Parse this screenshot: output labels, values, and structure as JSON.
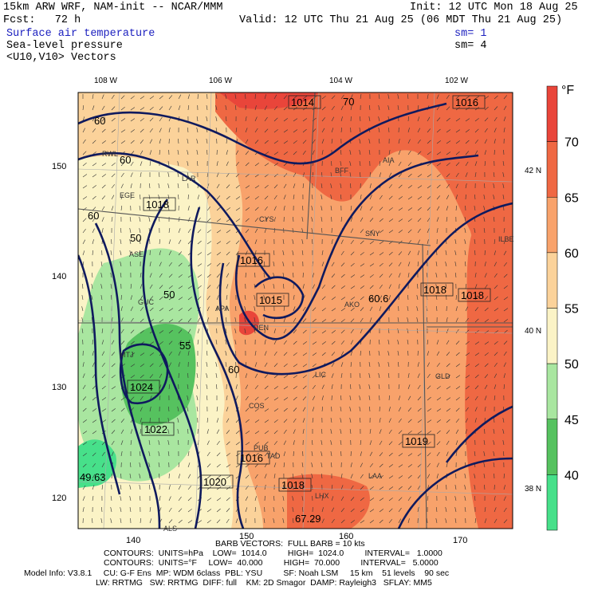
{
  "header": {
    "model_title": "15km ARW WRF, NAM-init -- NCAR/MMM",
    "init": "Init: 12 UTC Mon 18 Aug 25",
    "fcst": "Fcst:   72 h",
    "valid": "Valid: 12 UTC Thu 21 Aug 25 (06 MDT Thu 21 Aug 25)",
    "field1": "Surface air temperature",
    "field2": "Sea-level pressure",
    "field3": "<U10,V10> Vectors",
    "sm1": "sm= 1",
    "sm2": "sm= 4"
  },
  "map": {
    "lon_labels": [
      "108 W",
      "106 W",
      "104 W",
      "102 W"
    ],
    "lat_labels": [
      "42 N",
      "40 N",
      "38 N"
    ],
    "grid_y_labels": [
      "150",
      "140",
      "130",
      "120"
    ],
    "grid_x_labels": [
      "140",
      "150",
      "160",
      "170"
    ],
    "pressure_labels": [
      "1014",
      "1016",
      "1018",
      "1016",
      "1015",
      "1024",
      "1022",
      "1020",
      "1016",
      "1018",
      "1018",
      "1019",
      "1018"
    ],
    "temp_labels": [
      "60",
      "60",
      "70",
      "50",
      "55",
      "60",
      "60.6",
      "60",
      "50",
      "49.63",
      "67.29"
    ],
    "station_labels": [
      "RWL",
      "BFF",
      "AIA",
      "LAR",
      "CYS",
      "SNY",
      "ALS",
      "LHX",
      "LAA",
      "GLD",
      "AKO",
      "LIC",
      "COS",
      "DEN",
      "PUB",
      "TAD",
      "ILBE",
      "ASE",
      "EGE",
      "GUC",
      "MTJ",
      "APA"
    ],
    "colors": {
      "t_lt40": "#47e08a",
      "t_40_45": "#56c25f",
      "t_45_50": "#a9e6a0",
      "t_50_55": "#fbf3c6",
      "t_55_60": "#fbd29a",
      "t_60_65": "#f8a26b",
      "t_65_70": "#ef6843",
      "t_gt70": "#e9453a",
      "isobar": "#0f1a5e",
      "border": "#555555",
      "grid": "#aaaaaa",
      "vector": "#333333"
    }
  },
  "colorbar": {
    "unit": "°F",
    "labels": [
      "70",
      "65",
      "60",
      "55",
      "50",
      "45",
      "40"
    ]
  },
  "footer": {
    "barb": "BARB VECTORS:  FULL BARB = 10 kts",
    "contours1": "CONTOURS:  UNITS=hPa    LOW=  1014.0         HIGH=  1024.0         INTERVAL=   1.0000",
    "contours2": "CONTOURS:  UNITS=°F     LOW=  40.000         HIGH=  70.000         INTERVAL=   5.0000",
    "model_info1": "Model Info: V3.8.1     CU: G-F Ens  MP: WDM 6class  PBL: YSU         SF: Noah LSM     15 km    51 levels    90 sec",
    "model_info2": "LW: RRTMG   SW: RRTMG  DIFF: full    KM: 2D Smagor  DAMP: Rayleigh3   SFLAY: MM5"
  }
}
